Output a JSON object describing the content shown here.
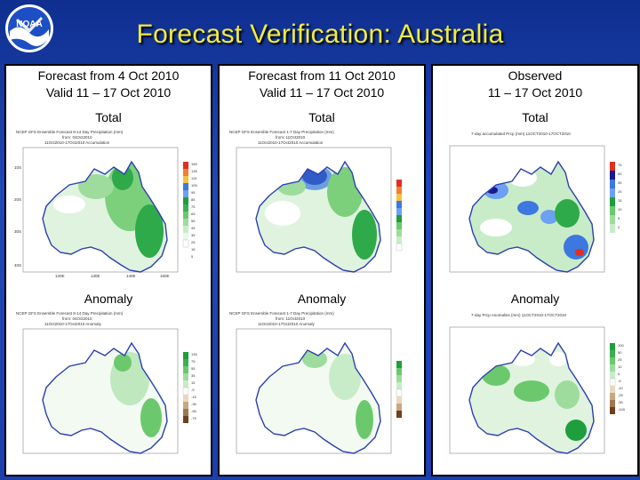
{
  "title": "Forecast Verification: Australia",
  "logo_text": "NOAA",
  "columns": [
    {
      "header_line1": "Forecast from 4 Oct 2010",
      "header_line2": "Valid 11 – 17 Oct 2010",
      "total_label": "Total",
      "anomaly_label": "Anomaly",
      "total_map_caption": [
        "NCEP GFS Ensemble Forecast 8-14 Day Precipitation (mm)",
        "from: 04Oct2010",
        "11Oct2010-17Oct2010 Accumulation"
      ],
      "anomaly_map_caption": [
        "NCEP GFS Ensemble Forecast 8-14 Day Precipitation (mm)",
        "from: 04Oct2010",
        "11Oct2010-17Oct2010 Anomaly"
      ]
    },
    {
      "header_line1": "Forecast from 11 Oct 2010",
      "header_line2": "Valid 11 – 17 Oct 2010",
      "total_label": "Total",
      "anomaly_label": "Anomaly",
      "total_map_caption": [
        "NCEP GFS Ensemble Forecast 1-7 Day Precipitation (mm)",
        "from: 11Oct2010",
        "11Oct2010-17Oct2010 Accumulation"
      ],
      "anomaly_map_caption": [
        "NCEP GFS Ensemble Forecast 1-7 Day Precipitation (mm)",
        "from: 11Oct2010",
        "11Oct2010-17Oct2010 Anomaly"
      ]
    },
    {
      "header_line1": "Observed",
      "header_line2": "11 – 17 Oct 2010",
      "total_label": "Total",
      "anomaly_label": "Anomaly",
      "total_map_caption": [
        "7-day accumulated Prcp (mm) 11OCT2010-17OCT2010"
      ],
      "anomaly_map_caption": [
        "7-day Prcp Anomalies (mm) 11OCT2010-17OCT2010"
      ]
    }
  ],
  "lat_labels": [
    "10S",
    "20S",
    "30S",
    "40S"
  ],
  "lon_labels": [
    "120E",
    "130E",
    "140E",
    "150E"
  ],
  "total_legend": [
    "155",
    "135",
    "115",
    "105",
    "95",
    "85",
    "75",
    "65",
    "55",
    "45",
    "35",
    "25",
    "15",
    "5"
  ],
  "anomaly_legend": [
    "135",
    "75",
    "55",
    "35",
    "15",
    "-5",
    "-15",
    "-35",
    "-55",
    "-75"
  ],
  "obs_total_legend": [
    "75",
    "50",
    "35",
    "25",
    "15",
    "10",
    "5",
    "2"
  ],
  "obs_anomaly_legend": [
    "100",
    "50",
    "25",
    "10",
    "5",
    "-5",
    "-10",
    "-25",
    "-50",
    "-100"
  ],
  "colors": {
    "title": "#f4ec3a",
    "background": "#1c3fae",
    "coast": "#2c3fb0",
    "green_light": "#c8ecc8",
    "green_mid": "#6cc86c",
    "green_dark": "#1e9e3c",
    "blue": "#3c78e0",
    "navy": "#1a1a8c",
    "red": "#e03020"
  }
}
